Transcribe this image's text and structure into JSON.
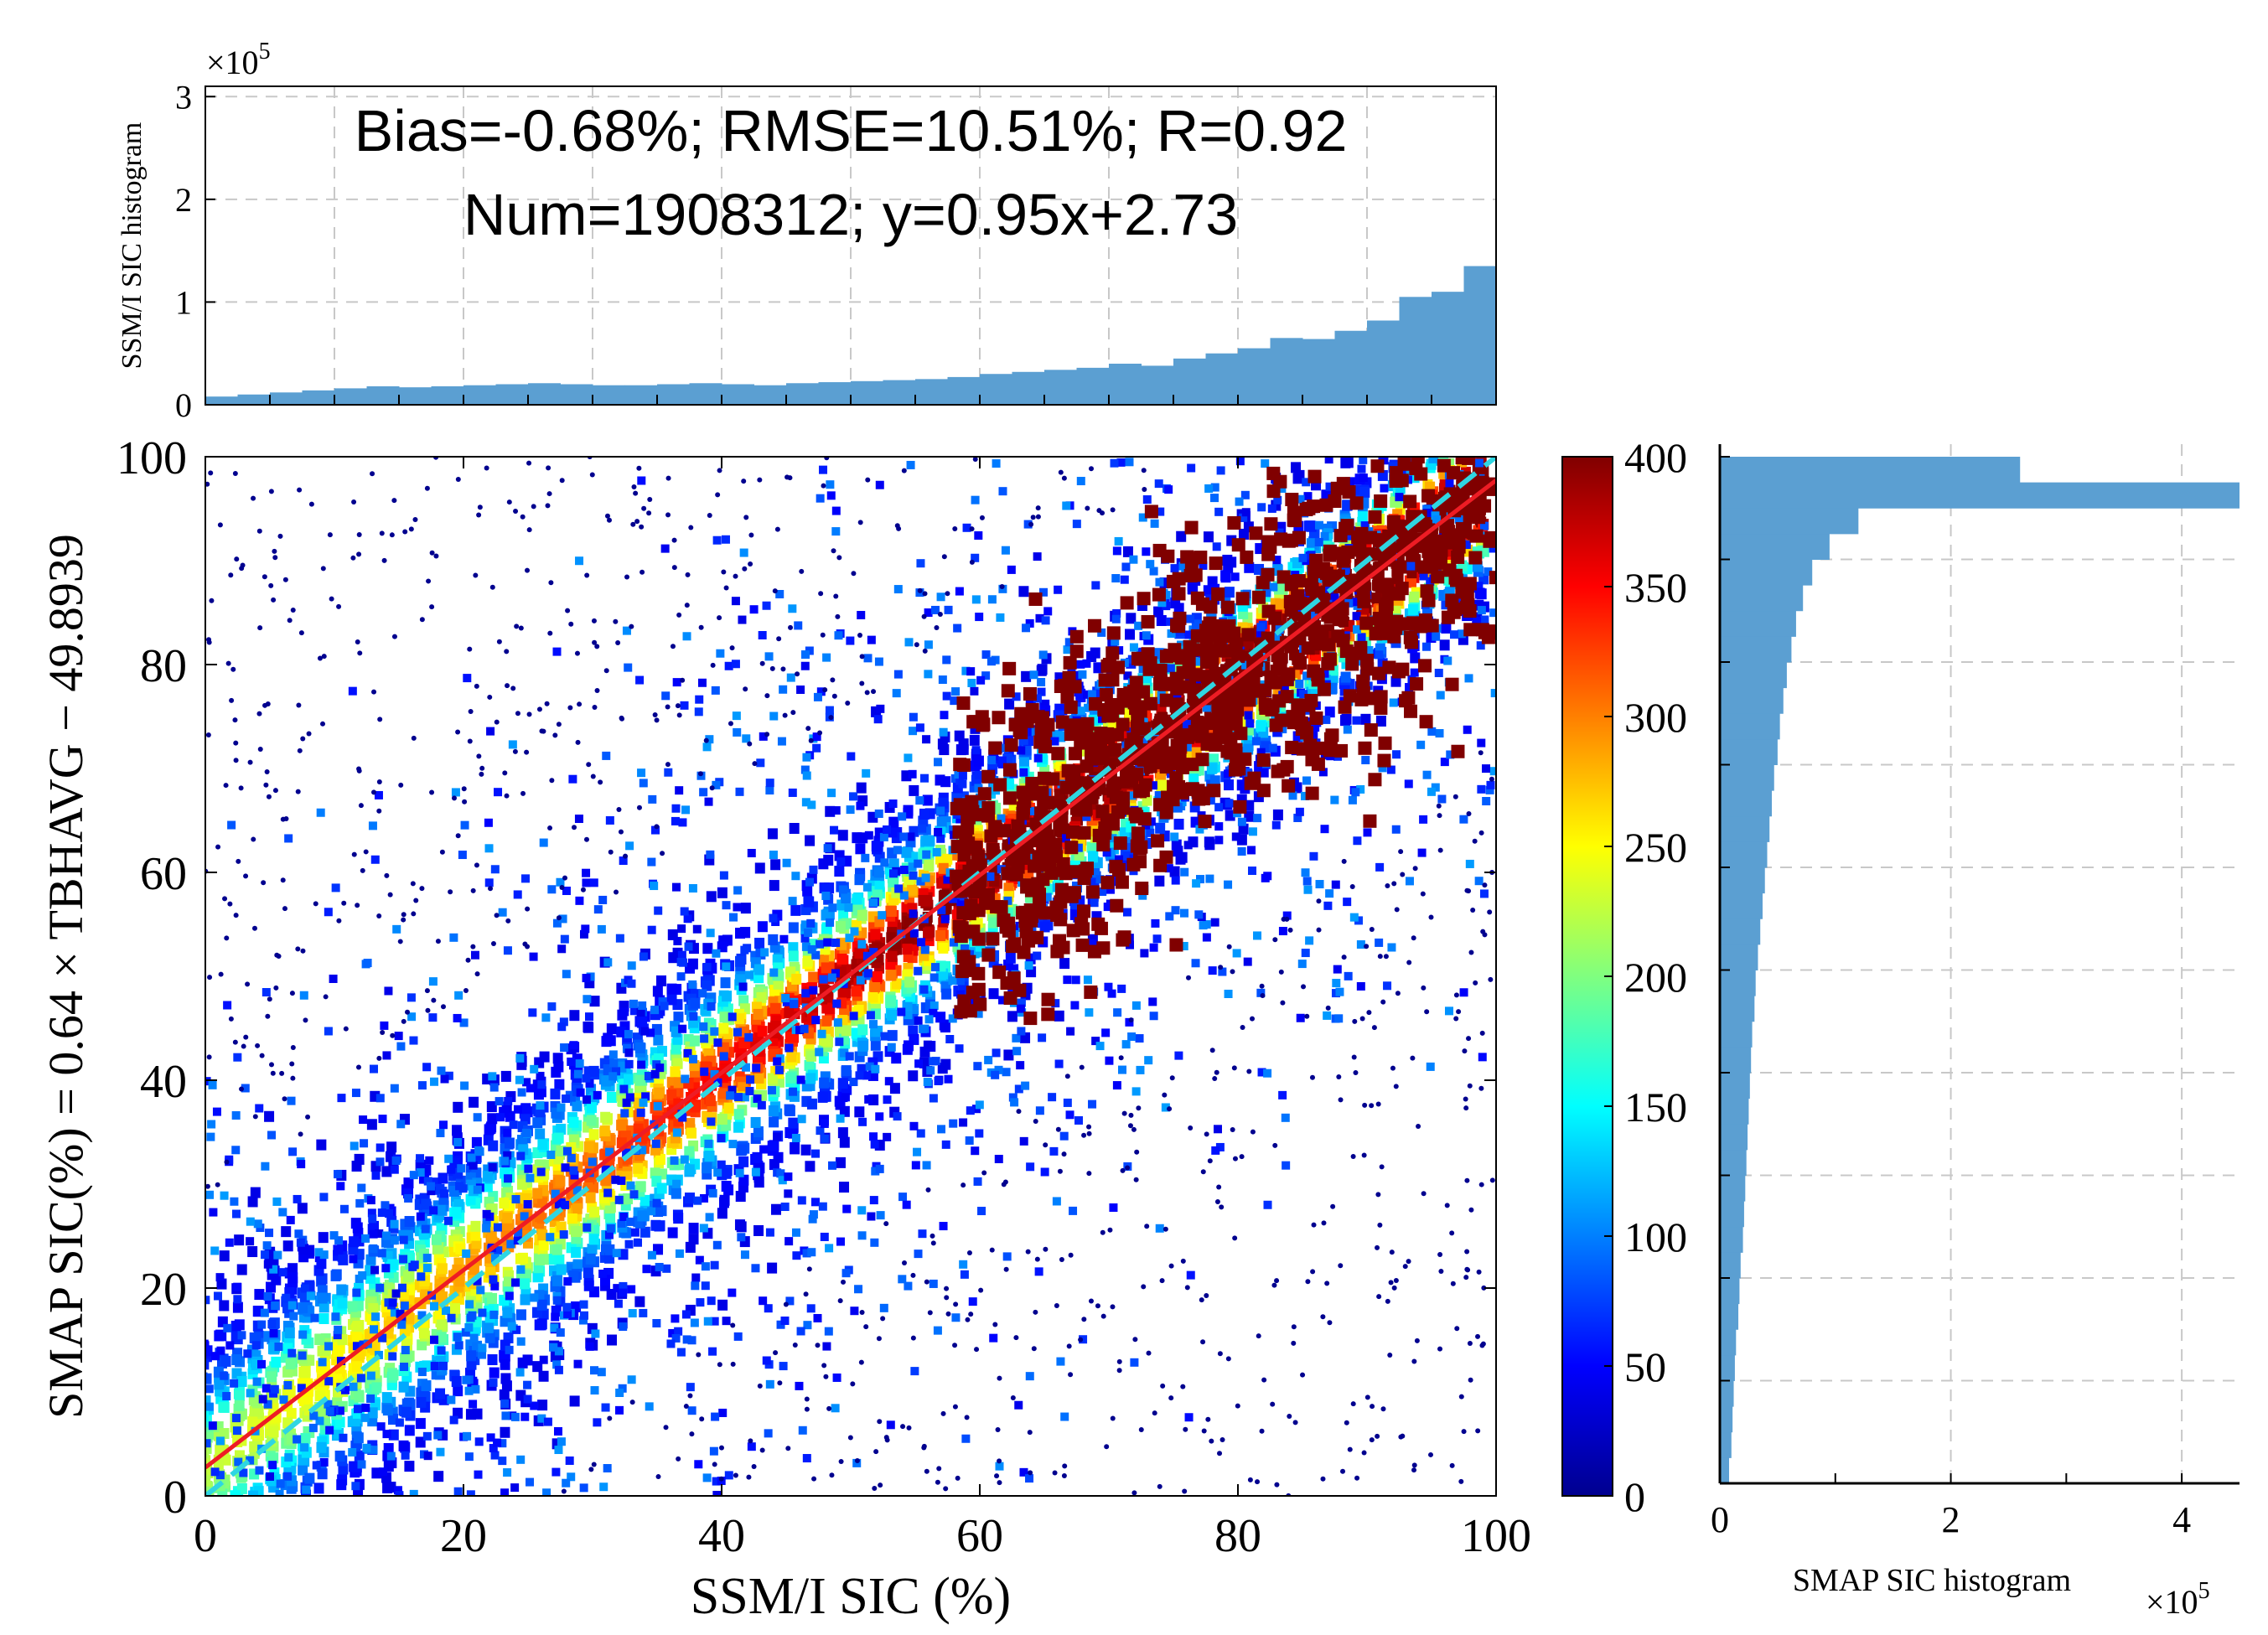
{
  "colors": {
    "hist_fill": "#5b9fd2",
    "fit_line": "#ee1c24",
    "one_to_one_line": "#2fd6e2",
    "grid": "#c8c8c8",
    "axis": "#000000"
  },
  "top_hist": {
    "ylabel": "SSM/I SIC histogram",
    "exponent_prefix": "×10",
    "exponent_power": "5",
    "y_ticks": [
      "0",
      "1",
      "2",
      "3"
    ],
    "x_range": [
      0,
      100
    ],
    "y_range": [
      0,
      3.1
    ],
    "bins": 40,
    "values_x1e5": [
      0.08,
      0.1,
      0.12,
      0.14,
      0.16,
      0.18,
      0.17,
      0.18,
      0.19,
      0.2,
      0.21,
      0.2,
      0.19,
      0.19,
      0.2,
      0.21,
      0.2,
      0.19,
      0.21,
      0.22,
      0.23,
      0.24,
      0.25,
      0.27,
      0.3,
      0.32,
      0.34,
      0.36,
      0.4,
      0.38,
      0.45,
      0.5,
      0.55,
      0.65,
      0.64,
      0.72,
      0.82,
      1.05,
      1.1,
      1.35
    ]
  },
  "stats": {
    "line1": "Bias=-0.68%; RMSE=10.51%; R=0.92",
    "line2": "Num=1908312; y=0.95x+2.73"
  },
  "scatter": {
    "type": "scatter-density",
    "xlabel": "SSM/I SIC (%)",
    "ylabel": "SMAP SIC(%) = 0.64 × TBHAVG − 49.8939",
    "x_ticks": [
      "0",
      "20",
      "40",
      "60",
      "80",
      "100"
    ],
    "y_ticks": [
      "0",
      "20",
      "40",
      "60",
      "80",
      "100"
    ],
    "xlim": [
      0,
      100
    ],
    "ylim": [
      0,
      100
    ],
    "fit": {
      "slope": 0.95,
      "intercept": 2.73
    },
    "reference": {
      "slope": 1,
      "intercept": 0
    },
    "n_points": 1908312
  },
  "colorbar": {
    "range": [
      0,
      400
    ],
    "ticks": [
      "0",
      "50",
      "100",
      "150",
      "200",
      "250",
      "300",
      "350",
      "400"
    ],
    "colormap": "jet"
  },
  "right_hist": {
    "xlabel": "SMAP SIC histogram",
    "exponent_prefix": "×10",
    "exponent_power": "5",
    "x_ticks": [
      "0",
      "2",
      "4"
    ],
    "x_range": [
      0,
      4.5
    ],
    "y_range": [
      0,
      100
    ],
    "bins": 40,
    "values_x1e5": [
      0.08,
      0.1,
      0.11,
      0.12,
      0.13,
      0.14,
      0.16,
      0.17,
      0.18,
      0.2,
      0.21,
      0.22,
      0.23,
      0.24,
      0.25,
      0.26,
      0.27,
      0.28,
      0.3,
      0.31,
      0.33,
      0.35,
      0.37,
      0.39,
      0.41,
      0.43,
      0.45,
      0.47,
      0.5,
      0.52,
      0.55,
      0.58,
      0.62,
      0.66,
      0.72,
      0.8,
      0.95,
      1.2,
      4.5,
      2.6
    ]
  }
}
